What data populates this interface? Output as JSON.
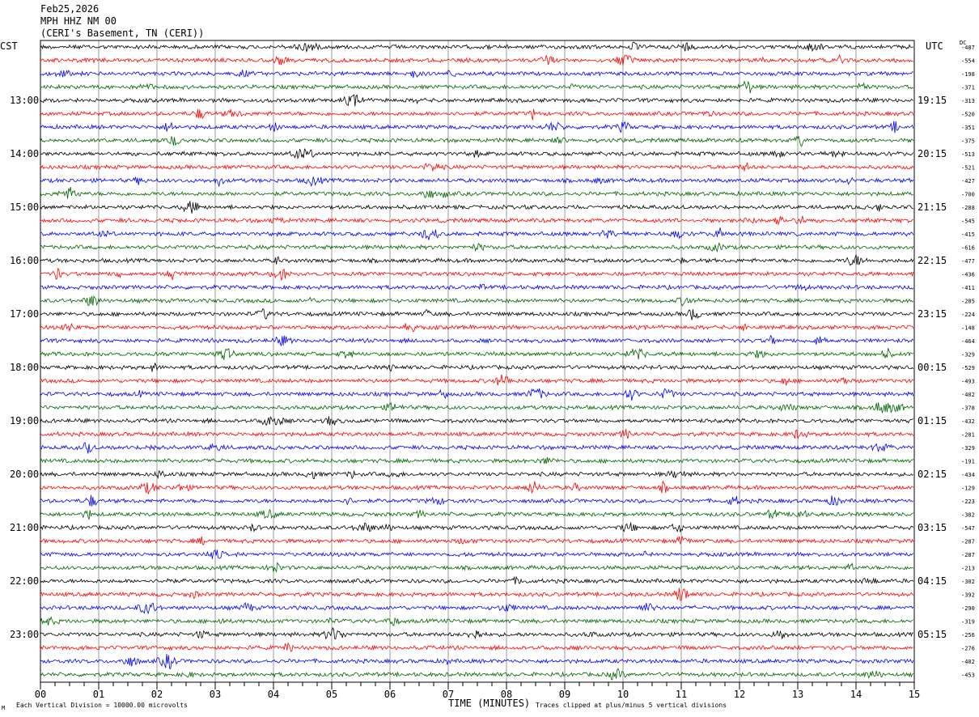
{
  "header": {
    "date": "Feb25,2026",
    "station": "MPH HHZ NM 00",
    "location": "(CERI's Basement, TN (CERI))"
  },
  "left_axis_title": "CST",
  "right_axis_title": "UTC",
  "dc_label": "DC",
  "footer": {
    "scale_note": "Each Vertical Division = 10000.00 microvolts",
    "clip_note": "Traces clipped at plus/minus 5 vertical divisions",
    "corner_mark": "M"
  },
  "chart_data": {
    "type": "line",
    "title": "Feb25,2026 MPH HHZ NM 00 (CERI's Basement, TN (CERI))",
    "xlabel": "TIME (MINUTES)",
    "ylabel": "",
    "xlim": [
      0,
      15
    ],
    "x_ticks": [
      "00",
      "01",
      "02",
      "03",
      "04",
      "05",
      "06",
      "07",
      "08",
      "09",
      "10",
      "11",
      "12",
      "13",
      "14",
      "15"
    ],
    "left_hour_labels": [
      "13:00",
      "14:00",
      "15:00",
      "16:00",
      "17:00",
      "18:00",
      "19:00",
      "20:00",
      "21:00",
      "22:00",
      "23:00"
    ],
    "right_hour_labels": [
      "19:15",
      "20:15",
      "21:15",
      "22:15",
      "23:15",
      "00:15",
      "01:15",
      "02:15",
      "03:15",
      "04:15",
      "05:15"
    ],
    "trace_colors": [
      "#000000",
      "#ff0000",
      "#0000ff",
      "#006400"
    ],
    "dc_offsets": [
      "-487",
      "-554",
      "-198",
      "-371",
      "-313",
      "-520",
      "-351",
      "-375",
      "-513",
      "-521",
      "-427",
      "-700",
      "-288",
      "-545",
      "-415",
      "-616",
      "-477",
      "-436",
      "-411",
      "-285",
      "-224",
      "-148",
      "-464",
      "-329",
      "-529",
      "-493",
      "-402",
      "-378",
      "-432",
      "-281",
      "-329",
      "-191",
      "-434",
      "-129",
      "-223",
      "-382",
      "-547",
      "-287",
      "-287",
      "-213",
      "-302",
      "-392",
      "-290",
      "-319",
      "-256",
      "-276",
      "-402",
      "-453"
    ],
    "grid": true
  }
}
